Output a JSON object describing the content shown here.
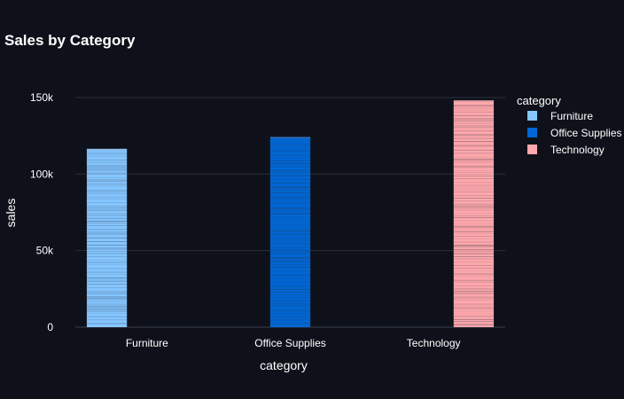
{
  "chart_data": {
    "type": "bar",
    "title": "Sales by Category",
    "xlabel": "category",
    "ylabel": "sales",
    "categories": [
      "Furniture",
      "Office Supplies",
      "Technology"
    ],
    "series": [
      {
        "name": "Furniture",
        "color": "#85c6ff",
        "values": [
          116500,
          null,
          null
        ]
      },
      {
        "name": "Office Supplies",
        "color": "#0066d4",
        "values": [
          null,
          124200,
          null
        ]
      },
      {
        "name": "Technology",
        "color": "#ffa8ad",
        "values": [
          null,
          null,
          148100
        ]
      }
    ],
    "ylim": [
      0,
      150000
    ],
    "yticks": [
      0,
      50000,
      100000,
      150000
    ],
    "ytick_labels": [
      "0",
      "50k",
      "100k",
      "150k"
    ],
    "grid": true,
    "legend": {
      "title": "category",
      "placement": "right"
    },
    "bar_texture": "stacked thin horizontal segments (one per order line)"
  }
}
